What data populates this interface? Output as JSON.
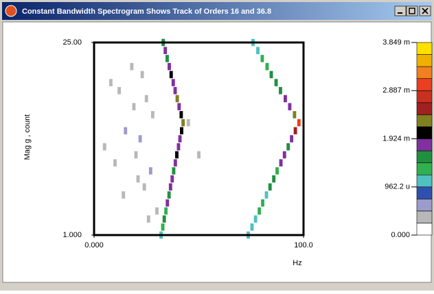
{
  "chart_data": {
    "type": "spectrogram",
    "title": "Constant Bandwidth Spectrogram Shows Track of Orders 16 and 36.8",
    "x_label": "Hz",
    "y_label": "Mag g , count",
    "xlim": [
      0,
      100
    ],
    "xticks": [
      {
        "value": 0,
        "label": "0.000"
      },
      {
        "value": 100,
        "label": "100.0"
      }
    ],
    "ylim": [
      1,
      25
    ],
    "yticks": [
      {
        "value": 1,
        "label": "1.000"
      },
      {
        "value": 25,
        "label": "25.00"
      }
    ],
    "clim": [
      0,
      0.003849
    ],
    "cticks": [
      {
        "value": 0,
        "label": "0.000"
      },
      {
        "value": 0.0009622,
        "label": "962.2 u"
      },
      {
        "value": 0.001924,
        "label": "1.924 m"
      },
      {
        "value": 0.002887,
        "label": "2.887 m"
      },
      {
        "value": 0.003849,
        "label": "3.849 m"
      }
    ],
    "colormap": [
      "#ffffff",
      "#b8b8b8",
      "#9c9ccc",
      "#3050b0",
      "#50c0c0",
      "#30b050",
      "#209040",
      "#8030a0",
      "#000000",
      "#808020",
      "#a02020",
      "#c83020",
      "#e84020",
      "#f08020",
      "#f0b000",
      "#ffe000"
    ],
    "series": [
      {
        "x": [
          32.0,
          32.8,
          33.5,
          34.3,
          35.0,
          35.8,
          36.5,
          37.3,
          38.0,
          38.8,
          39.5,
          40.3,
          41.0,
          41.8,
          42.5,
          41.6,
          40.6,
          39.7,
          38.7,
          37.8,
          36.8,
          35.9,
          34.9,
          34.0,
          33.0
        ],
        "y": [
          1,
          2,
          3,
          4,
          5,
          6,
          7,
          8,
          9,
          10,
          11,
          12,
          13,
          14,
          15,
          16,
          17,
          18,
          19,
          20,
          21,
          22,
          23,
          24,
          25
        ],
        "values": [
          0.0012,
          0.0014,
          0.0016,
          0.0013,
          0.0018,
          0.0015,
          0.0017,
          0.0019,
          0.0016,
          0.0018,
          0.002,
          0.0017,
          0.0019,
          0.0021,
          0.0024,
          0.002,
          0.0018,
          0.0022,
          0.0019,
          0.0017,
          0.0021,
          0.0018,
          0.0016,
          0.0019,
          0.0015
        ]
      },
      {
        "x": [
          73.6,
          75.4,
          77.1,
          78.9,
          80.5,
          82.3,
          84.0,
          85.8,
          87.4,
          89.2,
          90.9,
          92.7,
          94.3,
          96.1,
          97.8,
          95.7,
          93.4,
          91.3,
          89.0,
          86.9,
          84.6,
          82.6,
          80.3,
          78.2,
          75.9
        ],
        "y": [
          1,
          2,
          3,
          4,
          5,
          6,
          7,
          8,
          9,
          10,
          11,
          12,
          13,
          14,
          15,
          16,
          17,
          18,
          19,
          20,
          21,
          22,
          23,
          24,
          25
        ],
        "values": [
          0.001,
          0.0012,
          0.0011,
          0.0013,
          0.0014,
          0.0012,
          0.0015,
          0.0016,
          0.0014,
          0.0017,
          0.0018,
          0.0016,
          0.0019,
          0.0025,
          0.003,
          0.0022,
          0.0018,
          0.0017,
          0.0016,
          0.0015,
          0.0016,
          0.0014,
          0.0013,
          0.0012,
          0.0011
        ]
      },
      {
        "x": [
          5,
          8,
          10,
          12,
          15,
          18,
          20,
          22,
          24,
          25,
          27,
          28,
          30,
          14,
          19,
          23,
          45,
          50,
          26,
          21
        ],
        "y": [
          12,
          20,
          10,
          19,
          14,
          22,
          11,
          13,
          7,
          18,
          9,
          16,
          4,
          6,
          17,
          21,
          15,
          11,
          3,
          8
        ],
        "values": [
          0.0003,
          0.0003,
          0.0004,
          0.0003,
          0.0005,
          0.0003,
          0.0004,
          0.0005,
          0.0003,
          0.0004,
          0.0005,
          0.0004,
          0.0003,
          0.0003,
          0.0004,
          0.0003,
          0.0003,
          0.0003,
          0.0004,
          0.0004
        ]
      }
    ]
  }
}
